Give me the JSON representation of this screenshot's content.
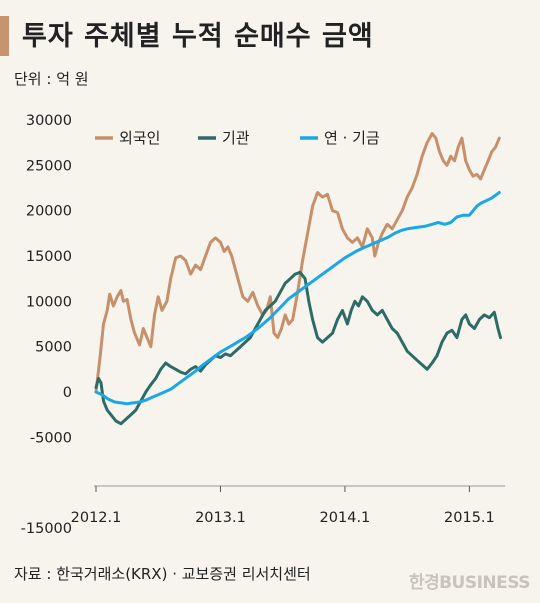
{
  "header": {
    "title": "투자 주체별 누적 순매수 금액",
    "unit": "단위 : 억 원",
    "source": "자료 : 한국거래소(KRX) · 교보증권 리서치센터",
    "watermark": "한경BUSINESS"
  },
  "chart_data": {
    "type": "line",
    "title": "투자 주체별 누적 순매수 금액",
    "xlabel": "",
    "ylabel": "",
    "unit": "억 원",
    "ylim": [
      -15000,
      30000
    ],
    "yticks": [
      30000,
      25000,
      20000,
      15000,
      10000,
      5000,
      0,
      -5000,
      -15000
    ],
    "xlim": [
      2012.0,
      2015.27
    ],
    "xticks": [
      {
        "value": 2012.0,
        "label": "2012.1"
      },
      {
        "value": 2013.0,
        "label": "2013.1"
      },
      {
        "value": 2014.0,
        "label": "2014.1"
      },
      {
        "value": 2015.0,
        "label": "2015.1"
      }
    ],
    "grid": false,
    "legend": "top",
    "series": [
      {
        "name": "외국인",
        "color": "#c6906a",
        "points": [
          [
            2012.0,
            0
          ],
          [
            2012.03,
            3500
          ],
          [
            2012.06,
            7500
          ],
          [
            2012.09,
            9000
          ],
          [
            2012.11,
            10800
          ],
          [
            2012.14,
            9500
          ],
          [
            2012.17,
            10500
          ],
          [
            2012.2,
            11200
          ],
          [
            2012.22,
            10000
          ],
          [
            2012.25,
            10200
          ],
          [
            2012.28,
            8000
          ],
          [
            2012.31,
            6500
          ],
          [
            2012.35,
            5200
          ],
          [
            2012.38,
            7000
          ],
          [
            2012.41,
            6000
          ],
          [
            2012.44,
            5000
          ],
          [
            2012.47,
            8500
          ],
          [
            2012.5,
            10500
          ],
          [
            2012.53,
            9000
          ],
          [
            2012.57,
            10000
          ],
          [
            2012.6,
            12500
          ],
          [
            2012.64,
            14800
          ],
          [
            2012.68,
            15000
          ],
          [
            2012.72,
            14500
          ],
          [
            2012.76,
            13000
          ],
          [
            2012.8,
            14000
          ],
          [
            2012.84,
            13500
          ],
          [
            2012.88,
            15000
          ],
          [
            2012.92,
            16500
          ],
          [
            2012.96,
            17000
          ],
          [
            2013.0,
            16500
          ],
          [
            2013.03,
            15500
          ],
          [
            2013.06,
            16000
          ],
          [
            2013.09,
            15000
          ],
          [
            2013.12,
            13500
          ],
          [
            2013.15,
            12000
          ],
          [
            2013.18,
            10500
          ],
          [
            2013.22,
            10000
          ],
          [
            2013.26,
            11000
          ],
          [
            2013.3,
            9500
          ],
          [
            2013.34,
            8500
          ],
          [
            2013.37,
            9000
          ],
          [
            2013.4,
            10500
          ],
          [
            2013.43,
            6500
          ],
          [
            2013.46,
            6000
          ],
          [
            2013.49,
            7000
          ],
          [
            2013.52,
            8500
          ],
          [
            2013.55,
            7500
          ],
          [
            2013.58,
            8000
          ],
          [
            2013.62,
            11000
          ],
          [
            2013.66,
            14500
          ],
          [
            2013.7,
            17500
          ],
          [
            2013.74,
            20500
          ],
          [
            2013.78,
            22000
          ],
          [
            2013.82,
            21500
          ],
          [
            2013.86,
            21800
          ],
          [
            2013.9,
            20000
          ],
          [
            2013.94,
            19800
          ],
          [
            2013.98,
            18000
          ],
          [
            2014.02,
            17000
          ],
          [
            2014.06,
            16500
          ],
          [
            2014.1,
            17000
          ],
          [
            2014.14,
            16000
          ],
          [
            2014.18,
            18000
          ],
          [
            2014.22,
            17000
          ],
          [
            2014.24,
            15000
          ],
          [
            2014.27,
            16500
          ],
          [
            2014.3,
            17500
          ],
          [
            2014.34,
            18500
          ],
          [
            2014.38,
            18000
          ],
          [
            2014.42,
            19000
          ],
          [
            2014.46,
            20000
          ],
          [
            2014.5,
            21500
          ],
          [
            2014.54,
            22500
          ],
          [
            2014.58,
            24000
          ],
          [
            2014.62,
            26000
          ],
          [
            2014.66,
            27500
          ],
          [
            2014.7,
            28500
          ],
          [
            2014.73,
            28000
          ],
          [
            2014.76,
            26500
          ],
          [
            2014.79,
            25500
          ],
          [
            2014.82,
            25000
          ],
          [
            2014.85,
            26000
          ],
          [
            2014.88,
            25500
          ],
          [
            2014.91,
            27000
          ],
          [
            2014.94,
            28000
          ],
          [
            2014.97,
            25500
          ],
          [
            2015.0,
            24500
          ],
          [
            2015.03,
            23800
          ],
          [
            2015.06,
            24000
          ],
          [
            2015.09,
            23500
          ],
          [
            2015.12,
            24500
          ],
          [
            2015.15,
            25500
          ],
          [
            2015.18,
            26500
          ],
          [
            2015.21,
            27000
          ],
          [
            2015.24,
            28000
          ]
        ]
      },
      {
        "name": "기관",
        "color": "#2e6b66",
        "points": [
          [
            2012.0,
            500
          ],
          [
            2012.02,
            1500
          ],
          [
            2012.04,
            1000
          ],
          [
            2012.06,
            -1000
          ],
          [
            2012.09,
            -2000
          ],
          [
            2012.12,
            -2500
          ],
          [
            2012.16,
            -3200
          ],
          [
            2012.2,
            -3500
          ],
          [
            2012.24,
            -3000
          ],
          [
            2012.28,
            -2500
          ],
          [
            2012.32,
            -2000
          ],
          [
            2012.36,
            -1000
          ],
          [
            2012.4,
            0
          ],
          [
            2012.44,
            800
          ],
          [
            2012.48,
            1500
          ],
          [
            2012.52,
            2500
          ],
          [
            2012.56,
            3200
          ],
          [
            2012.6,
            2800
          ],
          [
            2012.64,
            2500
          ],
          [
            2012.68,
            2200
          ],
          [
            2012.72,
            2000
          ],
          [
            2012.76,
            2500
          ],
          [
            2012.8,
            2800
          ],
          [
            2012.84,
            2300
          ],
          [
            2012.88,
            3000
          ],
          [
            2012.92,
            3500
          ],
          [
            2012.96,
            4000
          ],
          [
            2013.0,
            3800
          ],
          [
            2013.04,
            4200
          ],
          [
            2013.08,
            4000
          ],
          [
            2013.12,
            4500
          ],
          [
            2013.16,
            5000
          ],
          [
            2013.2,
            5500
          ],
          [
            2013.24,
            6000
          ],
          [
            2013.28,
            7000
          ],
          [
            2013.32,
            8000
          ],
          [
            2013.36,
            9000
          ],
          [
            2013.4,
            9500
          ],
          [
            2013.44,
            10000
          ],
          [
            2013.48,
            11000
          ],
          [
            2013.52,
            12000
          ],
          [
            2013.56,
            12500
          ],
          [
            2013.6,
            13000
          ],
          [
            2013.64,
            13200
          ],
          [
            2013.68,
            12500
          ],
          [
            2013.71,
            10000
          ],
          [
            2013.74,
            8000
          ],
          [
            2013.78,
            6000
          ],
          [
            2013.82,
            5500
          ],
          [
            2013.86,
            6000
          ],
          [
            2013.9,
            6500
          ],
          [
            2013.94,
            8000
          ],
          [
            2013.98,
            9000
          ],
          [
            2014.02,
            7500
          ],
          [
            2014.05,
            9000
          ],
          [
            2014.08,
            10000
          ],
          [
            2014.11,
            9500
          ],
          [
            2014.14,
            10500
          ],
          [
            2014.18,
            10000
          ],
          [
            2014.22,
            9000
          ],
          [
            2014.26,
            8500
          ],
          [
            2014.3,
            9000
          ],
          [
            2014.34,
            8000
          ],
          [
            2014.38,
            7000
          ],
          [
            2014.42,
            6500
          ],
          [
            2014.46,
            5500
          ],
          [
            2014.5,
            4500
          ],
          [
            2014.54,
            4000
          ],
          [
            2014.58,
            3500
          ],
          [
            2014.62,
            3000
          ],
          [
            2014.66,
            2500
          ],
          [
            2014.7,
            3200
          ],
          [
            2014.74,
            4000
          ],
          [
            2014.78,
            5500
          ],
          [
            2014.82,
            6500
          ],
          [
            2014.86,
            6800
          ],
          [
            2014.9,
            6000
          ],
          [
            2014.94,
            8000
          ],
          [
            2014.97,
            8500
          ],
          [
            2015.0,
            7500
          ],
          [
            2015.04,
            7000
          ],
          [
            2015.08,
            8000
          ],
          [
            2015.12,
            8500
          ],
          [
            2015.16,
            8200
          ],
          [
            2015.2,
            8800
          ],
          [
            2015.23,
            7000
          ],
          [
            2015.25,
            6000
          ]
        ]
      },
      {
        "name": "연 · 기금",
        "color": "#1ba7e6",
        "points": [
          [
            2012.0,
            0
          ],
          [
            2012.05,
            -300
          ],
          [
            2012.1,
            -800
          ],
          [
            2012.15,
            -1100
          ],
          [
            2012.2,
            -1200
          ],
          [
            2012.25,
            -1300
          ],
          [
            2012.3,
            -1200
          ],
          [
            2012.35,
            -1100
          ],
          [
            2012.4,
            -900
          ],
          [
            2012.45,
            -600
          ],
          [
            2012.5,
            -300
          ],
          [
            2012.55,
            0
          ],
          [
            2012.6,
            300
          ],
          [
            2012.65,
            800
          ],
          [
            2012.7,
            1300
          ],
          [
            2012.75,
            1800
          ],
          [
            2012.8,
            2300
          ],
          [
            2012.85,
            2900
          ],
          [
            2012.9,
            3400
          ],
          [
            2012.95,
            3900
          ],
          [
            2013.0,
            4400
          ],
          [
            2013.05,
            4800
          ],
          [
            2013.1,
            5200
          ],
          [
            2013.15,
            5600
          ],
          [
            2013.2,
            6000
          ],
          [
            2013.25,
            6500
          ],
          [
            2013.3,
            7000
          ],
          [
            2013.35,
            7600
          ],
          [
            2013.4,
            8200
          ],
          [
            2013.45,
            8900
          ],
          [
            2013.5,
            9600
          ],
          [
            2013.55,
            10300
          ],
          [
            2013.6,
            10800
          ],
          [
            2013.65,
            11300
          ],
          [
            2013.7,
            11800
          ],
          [
            2013.75,
            12300
          ],
          [
            2013.8,
            12800
          ],
          [
            2013.85,
            13300
          ],
          [
            2013.9,
            13800
          ],
          [
            2013.95,
            14300
          ],
          [
            2014.0,
            14800
          ],
          [
            2014.05,
            15200
          ],
          [
            2014.1,
            15600
          ],
          [
            2014.15,
            15900
          ],
          [
            2014.2,
            16200
          ],
          [
            2014.25,
            16500
          ],
          [
            2014.3,
            16800
          ],
          [
            2014.35,
            17100
          ],
          [
            2014.4,
            17500
          ],
          [
            2014.45,
            17800
          ],
          [
            2014.5,
            18000
          ],
          [
            2014.55,
            18100
          ],
          [
            2014.6,
            18200
          ],
          [
            2014.65,
            18300
          ],
          [
            2014.7,
            18500
          ],
          [
            2014.75,
            18700
          ],
          [
            2014.8,
            18500
          ],
          [
            2014.85,
            18700
          ],
          [
            2014.9,
            19300
          ],
          [
            2014.95,
            19500
          ],
          [
            2015.0,
            19500
          ],
          [
            2015.03,
            20000
          ],
          [
            2015.06,
            20500
          ],
          [
            2015.09,
            20800
          ],
          [
            2015.12,
            21000
          ],
          [
            2015.15,
            21200
          ],
          [
            2015.18,
            21400
          ],
          [
            2015.21,
            21700
          ],
          [
            2015.24,
            22000
          ]
        ]
      }
    ]
  }
}
